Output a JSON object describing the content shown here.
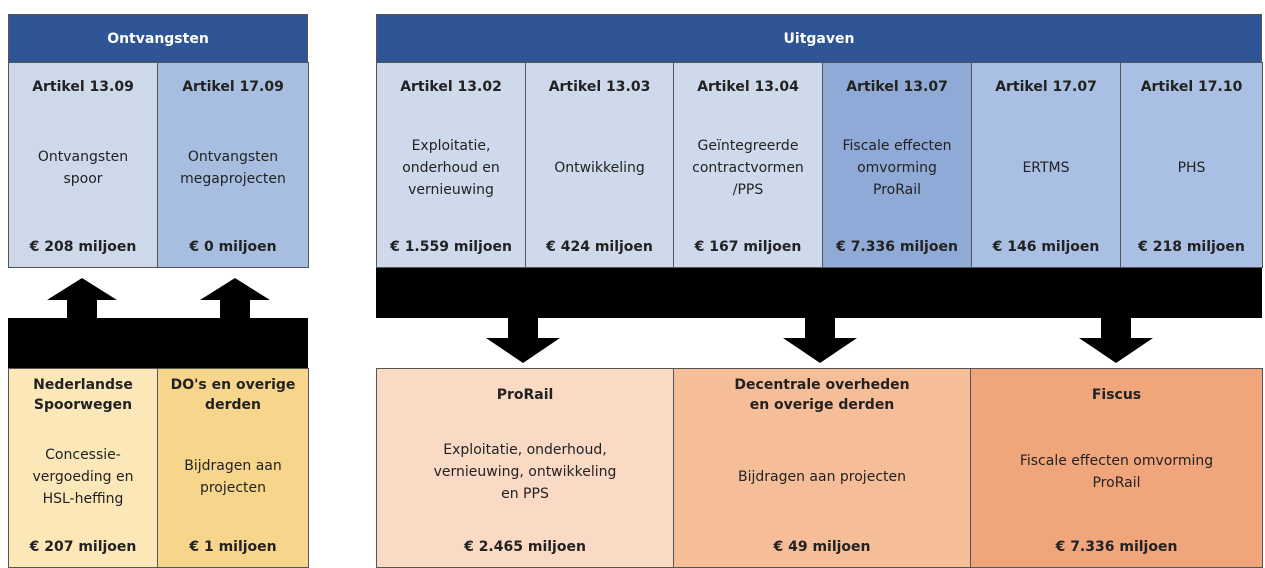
{
  "receipts": {
    "title": "Ontvangsten",
    "columns": [
      {
        "article": "Artikel 13.09",
        "description": [
          "Ontvangsten",
          "spoor"
        ],
        "amount": "€ 208 miljoen"
      },
      {
        "article": "Artikel 17.09",
        "description": [
          "Ontvangsten",
          "megaprojecten"
        ],
        "amount": "€ 0 miljoen"
      }
    ]
  },
  "expenditures": {
    "title": "Uitgaven",
    "columns": [
      {
        "article": "Artikel 13.02",
        "description": [
          "Exploitatie,",
          "onderhoud en",
          "vernieuwing"
        ],
        "amount": "€ 1.559 miljoen"
      },
      {
        "article": "Artikel 13.03",
        "description": [
          "Ontwikkeling"
        ],
        "amount": "€ 424 miljoen"
      },
      {
        "article": "Artikel 13.04",
        "description": [
          "Geïntegreerde",
          "contractvormen",
          "/PPS"
        ],
        "amount": "€ 167 miljoen"
      },
      {
        "article": "Artikel 13.07",
        "description": [
          "Fiscale effecten",
          "omvorming",
          "ProRail"
        ],
        "amount": "€ 7.336 miljoen"
      },
      {
        "article": "Artikel 17.07",
        "description": [
          "ERTMS"
        ],
        "amount": "€ 146 miljoen"
      },
      {
        "article": "Artikel 17.10",
        "description": [
          "PHS"
        ],
        "amount": "€ 218 miljoen"
      }
    ]
  },
  "sources": [
    {
      "name": [
        "Nederlandse",
        "Spoorwegen"
      ],
      "description": [
        "Concessie-",
        "vergoeding en",
        "HSL-heffing"
      ],
      "amount": "€ 207 miljoen"
    },
    {
      "name": [
        "DO's en overige",
        "derden"
      ],
      "description": [
        "Bijdragen aan",
        "projecten"
      ],
      "amount": "€ 1 miljoen"
    }
  ],
  "recipients": [
    {
      "name": [
        "ProRail"
      ],
      "description": [
        "Exploitatie, onderhoud,",
        "vernieuwing, ontwikkeling",
        "en PPS"
      ],
      "amount": "€ 2.465 miljoen"
    },
    {
      "name": [
        "Decentrale overheden",
        "en overige derden"
      ],
      "description": [
        "Bijdragen aan projecten"
      ],
      "amount": "€ 49 miljoen"
    },
    {
      "name": [
        "Fiscus"
      ],
      "description": [
        "Fiscale effecten omvorming",
        "ProRail"
      ],
      "amount": "€ 7.336 miljoen"
    }
  ]
}
